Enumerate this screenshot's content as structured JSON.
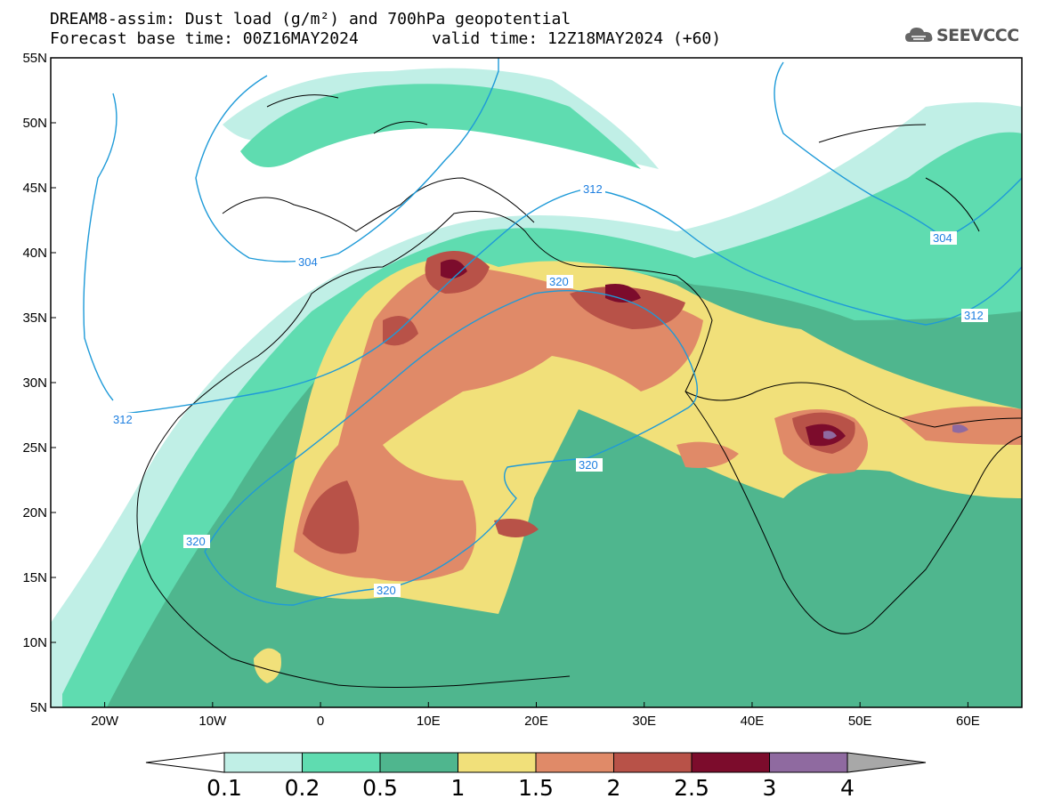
{
  "title": {
    "line1": "DREAM8-assim: Dust load (g/m²) and 700hPa geopotential",
    "line2": "Forecast base time: 00Z16MAY2024",
    "valid": "valid time: 12Z18MAY2024 (+60)"
  },
  "logo": {
    "text": "SEEVCCC",
    "icon": "cloud-icon"
  },
  "axes": {
    "lon_ticks": [
      "20W",
      "10W",
      "0",
      "10E",
      "20E",
      "30E",
      "40E",
      "50E",
      "60E"
    ],
    "lat_ticks": [
      "55N",
      "50N",
      "45N",
      "40N",
      "35N",
      "30N",
      "25N",
      "20N",
      "15N",
      "10N",
      "5N"
    ],
    "lon_range": [
      -25,
      65
    ],
    "lat_range": [
      5,
      55
    ]
  },
  "contours": {
    "variable": "700hPa geopotential",
    "labels": [
      "304",
      "312",
      "304",
      "312",
      "320",
      "320",
      "320",
      "312",
      "320"
    ]
  },
  "colorbar": {
    "labels": [
      "0.1",
      "0.2",
      "0.5",
      "1",
      "1.5",
      "2",
      "2.5",
      "3",
      "4"
    ],
    "colors": [
      "#c0efe6",
      "#5fdcb0",
      "#4fb68e",
      "#f1e07a",
      "#e08a68",
      "#b85248",
      "#7c0c2c",
      "#8f6aa0",
      "#a8a8a8"
    ]
  }
}
